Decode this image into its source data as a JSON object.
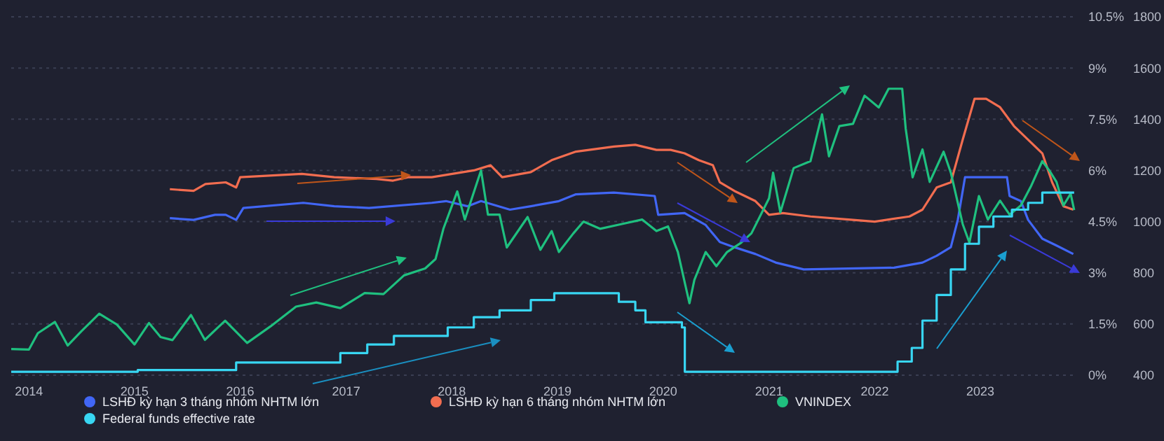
{
  "chart_data": {
    "type": "line",
    "xlim": [
      "2013-11-01",
      "2023-12-01"
    ],
    "xticks": [
      "2014",
      "2015",
      "2016",
      "2017",
      "2018",
      "2019",
      "2020",
      "2021",
      "2022",
      "2023"
    ],
    "ylim": [
      0,
      10.5
    ],
    "yticks": [
      {
        "value": 0,
        "label": "0%"
      },
      {
        "value": 1.5,
        "label": "1.5%"
      },
      {
        "value": 3,
        "label": "3%"
      },
      {
        "value": 4.5,
        "label": "4.5%"
      },
      {
        "value": 6,
        "label": "6%"
      },
      {
        "value": 7.5,
        "label": "7.5%"
      },
      {
        "value": 9,
        "label": "9%"
      },
      {
        "value": 10.5,
        "label": "10.5%"
      }
    ],
    "y2lim": [
      400,
      1800
    ],
    "y2ticks": [
      400,
      600,
      800,
      1000,
      1200,
      1400,
      1600,
      1800
    ],
    "grid": "y",
    "legend": "bottom",
    "series": [
      {
        "name": "LSHĐ kỳ hạn 3 tháng nhóm NHTM lớn",
        "color": "#4166f5",
        "x": [
          "2015-05-03",
          "2015-07-24",
          "2015-10-06",
          "2015-11-12",
          "2015-12-18",
          "2016-01-12",
          "2016-08-06",
          "2016-11-21",
          "2017-03-21",
          "2017-10-24",
          "2017-12-12",
          "2018-02-24",
          "2018-04-12",
          "2018-07-21",
          "2018-10-01",
          "2019-01-06",
          "2019-03-06",
          "2019-07-15",
          "2019-12-03",
          "2019-12-15",
          "2020-03-15",
          "2020-05-27",
          "2020-07-15",
          "2020-09-03",
          "2020-11-15",
          "2021-01-24",
          "2021-05-01",
          "2022-03-09",
          "2022-06-15",
          "2022-08-03",
          "2022-09-21",
          "2022-10-15",
          "2022-11-09",
          "2023-04-03",
          "2023-04-12",
          "2023-05-21",
          "2023-06-15",
          "2023-08-03",
          "2023-09-21",
          "2023-11-18"
        ],
        "values": [
          4.6,
          4.55,
          4.7,
          4.7,
          4.55,
          4.9,
          5.05,
          4.95,
          4.9,
          5.05,
          5.1,
          4.95,
          5.1,
          4.85,
          4.95,
          5.1,
          5.3,
          5.35,
          5.25,
          4.7,
          4.75,
          4.4,
          3.9,
          3.75,
          3.55,
          3.3,
          3.1,
          3.15,
          3.3,
          3.5,
          3.75,
          4.55,
          5.8,
          5.8,
          5.25,
          5.1,
          4.55,
          4.0,
          3.8,
          3.55
        ]
      },
      {
        "name": "LSHĐ kỳ hạn 6 tháng nhóm NHTM lớn",
        "color": "#f26d50",
        "x": [
          "2015-05-03",
          "2015-07-24",
          "2015-09-03",
          "2015-11-12",
          "2015-12-18",
          "2016-01-01",
          "2016-08-01",
          "2016-11-21",
          "2017-04-15",
          "2017-06-12",
          "2017-08-03",
          "2017-10-24",
          "2018-03-18",
          "2018-05-15",
          "2018-06-24",
          "2018-10-01",
          "2018-12-12",
          "2019-03-06",
          "2019-07-15",
          "2019-09-27",
          "2019-12-09",
          "2020-01-27",
          "2020-03-15",
          "2020-05-03",
          "2020-06-21",
          "2020-07-15",
          "2020-09-03",
          "2020-11-15",
          "2021-01-01",
          "2021-02-18",
          "2021-05-24",
          "2021-10-18",
          "2022-01-01",
          "2022-05-01",
          "2022-06-15",
          "2022-08-03",
          "2022-09-21",
          "2022-11-01",
          "2022-12-12",
          "2023-01-21",
          "2023-03-10",
          "2023-04-27",
          "2023-06-15",
          "2023-08-03",
          "2023-09-06",
          "2023-10-15",
          "2023-11-18"
        ],
        "values": [
          5.45,
          5.4,
          5.6,
          5.65,
          5.5,
          5.8,
          5.9,
          5.8,
          5.75,
          5.7,
          5.8,
          5.8,
          6.0,
          6.15,
          5.8,
          5.95,
          6.3,
          6.55,
          6.7,
          6.75,
          6.6,
          6.6,
          6.5,
          6.3,
          6.15,
          5.65,
          5.4,
          5.1,
          4.7,
          4.75,
          4.65,
          4.55,
          4.5,
          4.65,
          4.85,
          5.5,
          5.65,
          6.9,
          8.1,
          8.1,
          7.85,
          7.3,
          6.9,
          6.5,
          5.65,
          4.95,
          4.85
        ]
      },
      {
        "name": "VNINDEX",
        "color": "#1fc07f",
        "axis": "y2",
        "x": [
          "2013-11-01",
          "2014-01-01",
          "2014-02-01",
          "2014-04-01",
          "2014-05-15",
          "2014-07-01",
          "2014-09-01",
          "2014-11-01",
          "2015-01-01",
          "2015-02-20",
          "2015-04-01",
          "2015-05-12",
          "2015-07-15",
          "2015-09-01",
          "2015-11-10",
          "2016-01-25",
          "2016-04-15",
          "2016-07-12",
          "2016-09-20",
          "2016-12-12",
          "2017-03-06",
          "2017-05-10",
          "2017-07-20",
          "2017-10-01",
          "2017-11-06",
          "2017-12-03",
          "2018-01-20",
          "2018-02-15",
          "2018-04-12",
          "2018-05-06",
          "2018-06-15",
          "2018-07-10",
          "2018-09-20",
          "2018-11-03",
          "2018-12-12",
          "2019-01-06",
          "2019-02-25",
          "2019-04-01",
          "2019-05-28",
          "2019-08-09",
          "2019-10-21",
          "2019-12-09",
          "2020-01-18",
          "2020-02-21",
          "2020-04-01",
          "2020-04-18",
          "2020-05-27",
          "2020-07-03",
          "2020-08-09",
          "2020-09-27",
          "2020-11-01",
          "2021-01-01",
          "2021-01-15",
          "2021-02-09",
          "2021-03-27",
          "2021-05-24",
          "2021-07-03",
          "2021-07-27",
          "2021-09-01",
          "2021-10-18",
          "2021-11-27",
          "2022-01-15",
          "2022-02-18",
          "2022-04-06",
          "2022-04-18",
          "2022-05-12",
          "2022-06-15",
          "2022-07-10",
          "2022-08-27",
          "2022-09-21",
          "2022-11-01",
          "2022-11-24",
          "2022-12-27",
          "2023-01-27",
          "2023-03-10",
          "2023-04-12",
          "2023-05-21",
          "2023-06-24",
          "2023-08-03",
          "2023-08-27",
          "2023-09-21",
          "2023-10-15",
          "2023-11-09",
          "2023-11-21"
        ],
        "values": [
          502,
          500,
          564,
          608,
          516,
          571,
          640,
          598,
          520,
          604,
          549,
          537,
          635,
          538,
          613,
          526,
          591,
          668,
          684,
          662,
          721,
          717,
          790,
          817,
          854,
          972,
          1118,
          1008,
          1200,
          1027,
          1027,
          899,
          1018,
          890,
          963,
          881,
          954,
          1000,
          972,
          990,
          1008,
          963,
          981,
          881,
          681,
          772,
          881,
          826,
          881,
          918,
          954,
          1091,
          1191,
          1036,
          1209,
          1236,
          1419,
          1255,
          1373,
          1382,
          1492,
          1446,
          1519,
          1519,
          1364,
          1173,
          1282,
          1155,
          1273,
          1191,
          990,
          918,
          1100,
          1008,
          1082,
          1027,
          1063,
          1136,
          1236,
          1200,
          1155,
          1063,
          1109,
          1045
        ]
      },
      {
        "name": "Federal funds effective rate",
        "color": "#38d6f2",
        "type": "step",
        "x": [
          "2013-11-01",
          "2015-01-12",
          "2015-12-18",
          "2016-12-12",
          "2017-03-15",
          "2017-06-15",
          "2017-12-18",
          "2018-03-18",
          "2018-06-15",
          "2018-10-01",
          "2018-12-21",
          "2019-08-01",
          "2019-09-27",
          "2019-11-01",
          "2020-03-06",
          "2020-03-16",
          "2022-03-21",
          "2022-05-09",
          "2022-06-15",
          "2022-08-03",
          "2022-09-21",
          "2022-11-09",
          "2022-12-27",
          "2023-02-15",
          "2023-04-20",
          "2023-06-15",
          "2023-08-03",
          "2023-11-21"
        ],
        "values": [
          0.1,
          0.15,
          0.37,
          0.65,
          0.9,
          1.15,
          1.4,
          1.7,
          1.9,
          2.2,
          2.4,
          2.15,
          1.9,
          1.55,
          1.4,
          0.1,
          0.4,
          0.8,
          1.6,
          2.35,
          3.1,
          3.85,
          4.35,
          4.65,
          4.85,
          5.05,
          5.35,
          5.35
        ]
      }
    ]
  }
}
